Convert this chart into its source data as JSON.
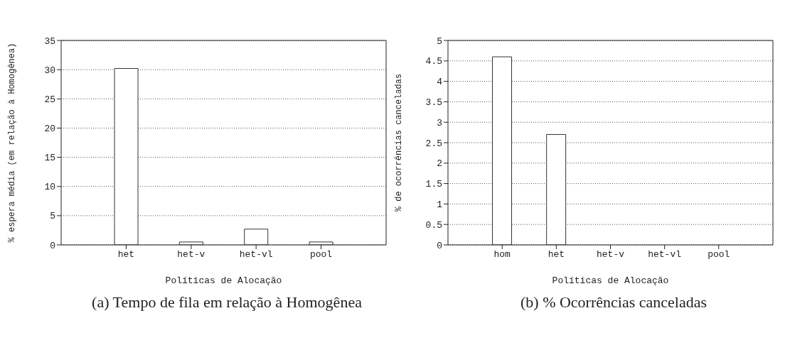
{
  "chart_data": [
    {
      "type": "bar",
      "title": "(a) Tempo de fila em relação à Homogênea",
      "xlabel": "Políticas de Alocação",
      "ylabel": "% espera média (em relação à Homogênea)",
      "categories": [
        "het",
        "het-v",
        "het-vl",
        "pool"
      ],
      "values": [
        30.2,
        0.5,
        2.7,
        0.5
      ],
      "color": "#ffffff",
      "ylim": [
        0,
        35
      ],
      "yticks": [
        0,
        5,
        10,
        15,
        20,
        25,
        30,
        35
      ],
      "grid": "y"
    },
    {
      "type": "bar",
      "title": "(b) % Ocorrências canceladas",
      "xlabel": "Políticas de Alocação",
      "ylabel": "% de ocorrências canceladas",
      "categories": [
        "hom",
        "het",
        "het-v",
        "het-vl",
        "pool"
      ],
      "values": [
        4.6,
        2.7,
        0,
        0,
        0
      ],
      "color": "#ffffff",
      "ylim": [
        0,
        5
      ],
      "yticks": [
        0,
        0.5,
        1,
        1.5,
        2,
        2.5,
        3,
        3.5,
        4,
        4.5,
        5
      ],
      "grid": "y"
    }
  ]
}
